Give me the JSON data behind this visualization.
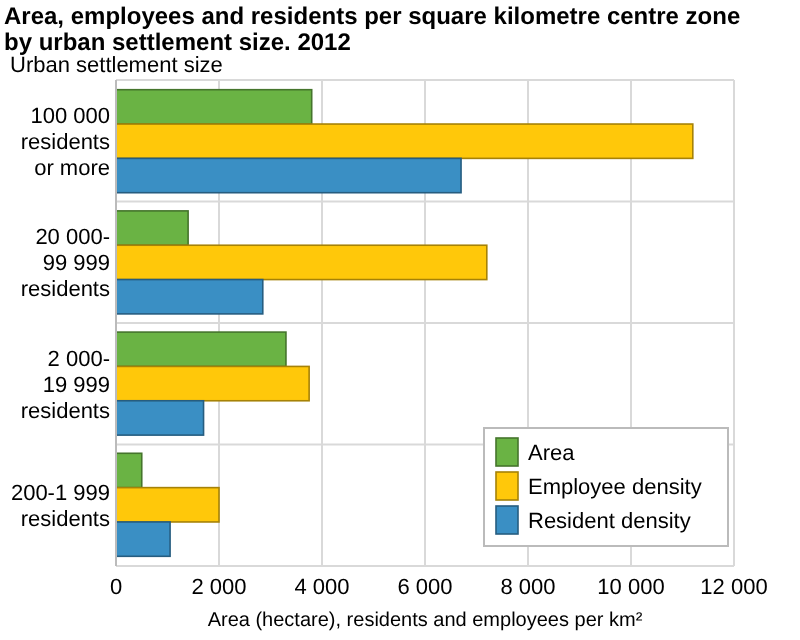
{
  "chart_data": {
    "type": "bar",
    "orientation": "horizontal",
    "title": "Area, employees and residents per square kilometre centre zone by urban settlement size. 2012",
    "ylabel": "Urban settlement size",
    "xlabel": "Area (hectare), residents and employees per km²",
    "categories": [
      "100 000\nresidents\nor more",
      "20 000-\n99 999\nresidents",
      "2 000-\n19 999\nresidents",
      "200-1 999\nresidents"
    ],
    "series": [
      {
        "name": "Area",
        "color": "#6ab344",
        "values": [
          3800,
          1400,
          3300,
          500
        ]
      },
      {
        "name": "Employee density",
        "color": "#ffc80a",
        "values": [
          11200,
          7200,
          3750,
          2000
        ]
      },
      {
        "name": "Resident density",
        "color": "#3a8fc4",
        "values": [
          6700,
          2850,
          1700,
          1050
        ]
      }
    ],
    "xlim": [
      0,
      12000
    ],
    "xticks": [
      {
        "value": 0,
        "label": "0"
      },
      {
        "value": 2000,
        "label": "2 000"
      },
      {
        "value": 4000,
        "label": "4 000"
      },
      {
        "value": 6000,
        "label": "6 000"
      },
      {
        "value": 8000,
        "label": "8 000"
      },
      {
        "value": 10000,
        "label": "10 000"
      },
      {
        "value": 12000,
        "label": "12 000"
      }
    ],
    "grid": "x",
    "legend": "bottom right"
  }
}
